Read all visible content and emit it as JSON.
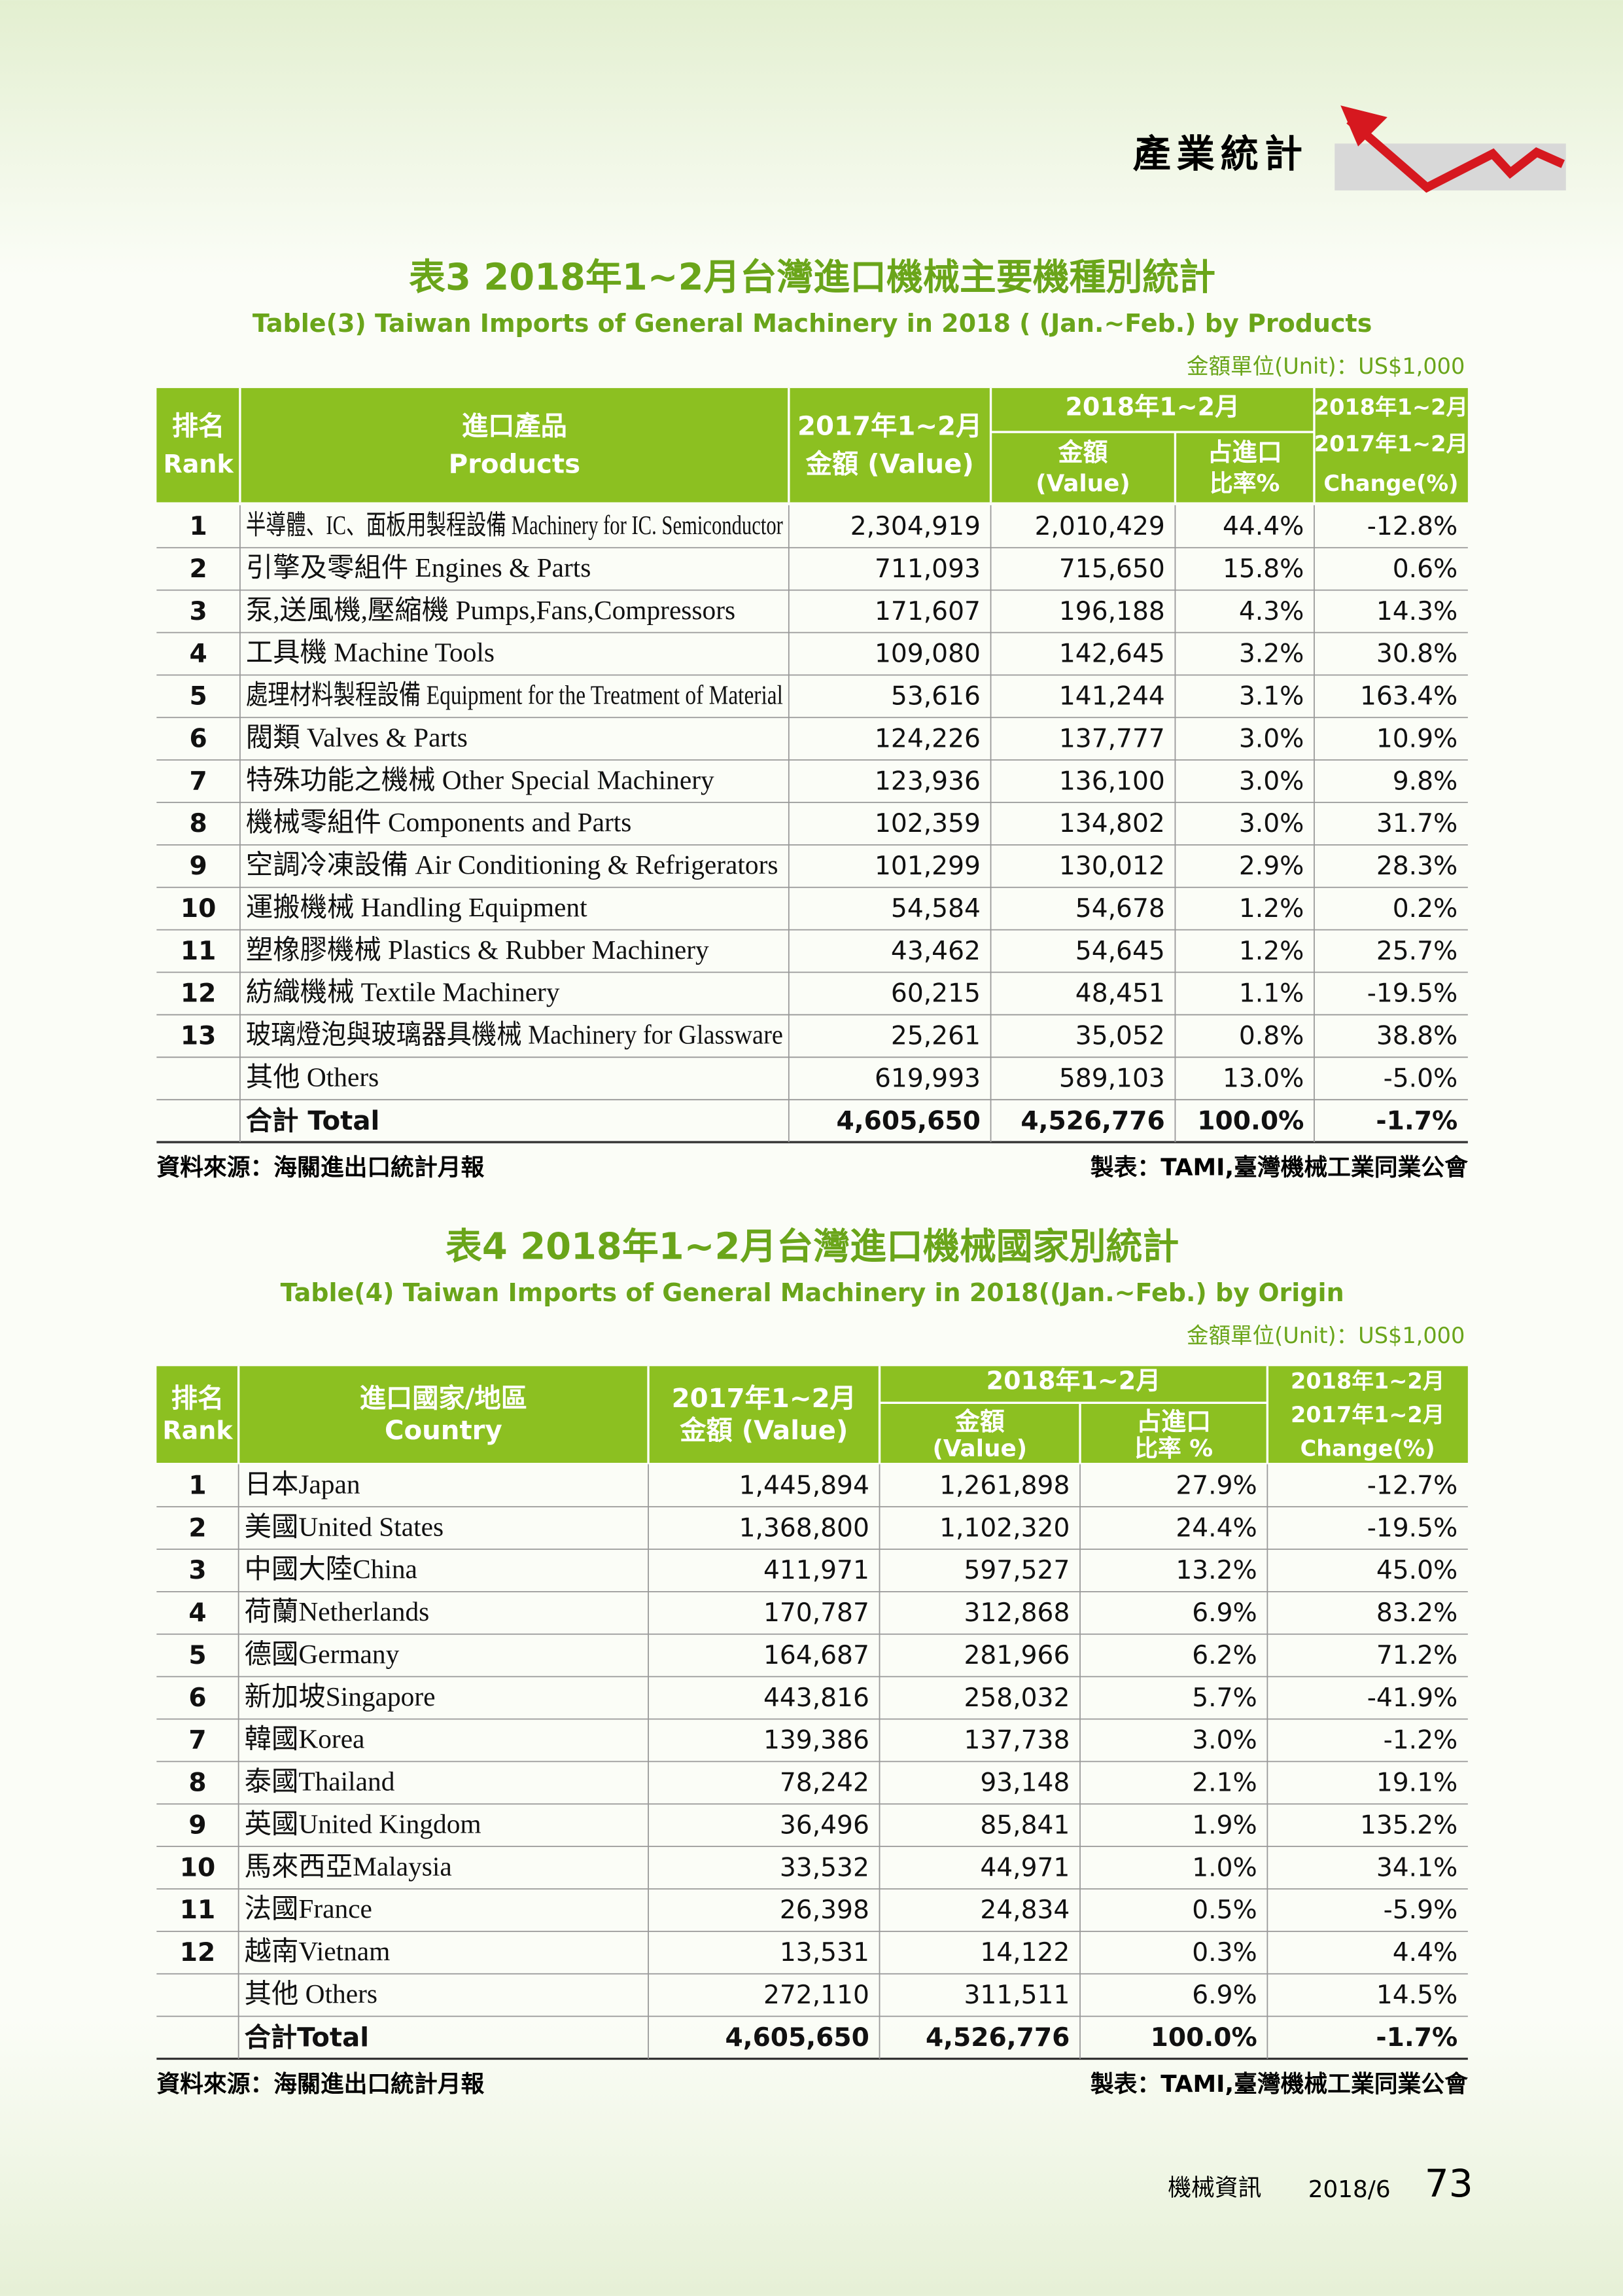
{
  "header": {
    "section": "產業統計"
  },
  "table3": {
    "title": "表3  2018年1~2月台灣進口機械主要機種別統計",
    "subtitle": "Table(3) Taiwan Imports of General Machinery in 2018 ( (Jan.~Feb.) by Products",
    "unit": "金額單位(Unit)：US$1,000",
    "head": {
      "rank": [
        "排名",
        "Rank"
      ],
      "name": [
        "進口產品",
        "Products"
      ],
      "prev": [
        "2017年1~2月",
        "金額 (Value)"
      ],
      "span": "2018年1~2月",
      "value": [
        "金額",
        "(Value)"
      ],
      "share": [
        "占進口",
        "比率%"
      ],
      "change": [
        "2018年1~2月",
        "2017年1~2月",
        "Change(%)"
      ]
    },
    "rows": [
      [
        "1",
        "半導體、IC、面板用製程設備 Machinery for IC. Semiconductor",
        "2,304,919",
        "2,010,429",
        "44.4%",
        "-12.8%"
      ],
      [
        "2",
        "引擎及零組件 Engines & Parts",
        "711,093",
        "715,650",
        "15.8%",
        "0.6%"
      ],
      [
        "3",
        "泵,送風機,壓縮機 Pumps,Fans,Compressors",
        "171,607",
        "196,188",
        "4.3%",
        "14.3%"
      ],
      [
        "4",
        "工具機 Machine Tools",
        "109,080",
        "142,645",
        "3.2%",
        "30.8%"
      ],
      [
        "5",
        "處理材料製程設備 Equipment for the Treatment of Material",
        "53,616",
        "141,244",
        "3.1%",
        "163.4%"
      ],
      [
        "6",
        "閥類 Valves & Parts",
        "124,226",
        "137,777",
        "3.0%",
        "10.9%"
      ],
      [
        "7",
        "特殊功能之機械 Other Special Machinery",
        "123,936",
        "136,100",
        "3.0%",
        "9.8%"
      ],
      [
        "8",
        "機械零組件 Components and Parts",
        "102,359",
        "134,802",
        "3.0%",
        "31.7%"
      ],
      [
        "9",
        "空調冷凍設備 Air Conditioning & Refrigerators",
        "101,299",
        "130,012",
        "2.9%",
        "28.3%"
      ],
      [
        "10",
        "運搬機械 Handling Equipment",
        "54,584",
        "54,678",
        "1.2%",
        "0.2%"
      ],
      [
        "11",
        "塑橡膠機械 Plastics & Rubber Machinery",
        "43,462",
        "54,645",
        "1.2%",
        "25.7%"
      ],
      [
        "12",
        "紡織機械 Textile Machinery",
        "60,215",
        "48,451",
        "1.1%",
        "-19.5%"
      ],
      [
        "13",
        "玻璃燈泡與玻璃器具機械 Machinery for Glassware",
        "25,261",
        "35,052",
        "0.8%",
        "38.8%"
      ],
      [
        null,
        "其他 Others",
        "619,993",
        "589,103",
        "13.0%",
        "-5.0%"
      ],
      [
        null,
        "合計 Total",
        "4,605,650",
        "4,526,776",
        "100.0%",
        "-1.7%"
      ]
    ],
    "source": "資料來源：海關進出口統計月報",
    "maker": "製表：TAMI,臺灣機械工業同業公會"
  },
  "table4": {
    "title": "表4  2018年1~2月台灣進口機械國家別統計",
    "subtitle": "Table(4) Taiwan Imports of General Machinery in 2018((Jan.~Feb.) by Origin",
    "unit": "金額單位(Unit)：US$1,000",
    "head": {
      "rank": [
        "排名",
        "Rank"
      ],
      "name": [
        "進口國家/地區",
        "Country"
      ],
      "prev": [
        "2017年1~2月",
        "金額 (Value)"
      ],
      "span": "2018年1~2月",
      "value": [
        "金額",
        "(Value)"
      ],
      "share": [
        "占進口",
        "比率 %"
      ],
      "change": [
        "2018年1~2月",
        "2017年1~2月",
        "Change(%)"
      ]
    },
    "rows": [
      [
        "1",
        "日本Japan",
        "1,445,894",
        "1,261,898",
        "27.9%",
        "-12.7%"
      ],
      [
        "2",
        "美國United States",
        "1,368,800",
        "1,102,320",
        "24.4%",
        "-19.5%"
      ],
      [
        "3",
        "中國大陸China",
        "411,971",
        "597,527",
        "13.2%",
        "45.0%"
      ],
      [
        "4",
        "荷蘭Netherlands",
        "170,787",
        "312,868",
        "6.9%",
        "83.2%"
      ],
      [
        "5",
        "德國Germany",
        "164,687",
        "281,966",
        "6.2%",
        "71.2%"
      ],
      [
        "6",
        "新加坡Singapore",
        "443,816",
        "258,032",
        "5.7%",
        "-41.9%"
      ],
      [
        "7",
        "韓國Korea",
        "139,386",
        "137,738",
        "3.0%",
        "-1.2%"
      ],
      [
        "8",
        "泰國Thailand",
        "78,242",
        "93,148",
        "2.1%",
        "19.1%"
      ],
      [
        "9",
        "英國United Kingdom",
        "36,496",
        "85,841",
        "1.9%",
        "135.2%"
      ],
      [
        "10",
        "馬來西亞Malaysia",
        "33,532",
        "44,971",
        "1.0%",
        "34.1%"
      ],
      [
        "11",
        "法國France",
        "26,398",
        "24,834",
        "0.5%",
        "-5.9%"
      ],
      [
        "12",
        "越南Vietnam",
        "13,531",
        "14,122",
        "0.3%",
        "4.4%"
      ],
      [
        null,
        "其他 Others",
        "272,110",
        "311,511",
        "6.9%",
        "14.5%"
      ],
      [
        null,
        "合計Total",
        "4,605,650",
        "4,526,776",
        "100.0%",
        "-1.7%"
      ]
    ],
    "source": "資料來源：海關進出口統計月報",
    "maker": "製表：TAMI,臺灣機械工業同業公會"
  },
  "footer": {
    "magazine": "機械資訊",
    "date": "2018/6",
    "page": "73"
  }
}
